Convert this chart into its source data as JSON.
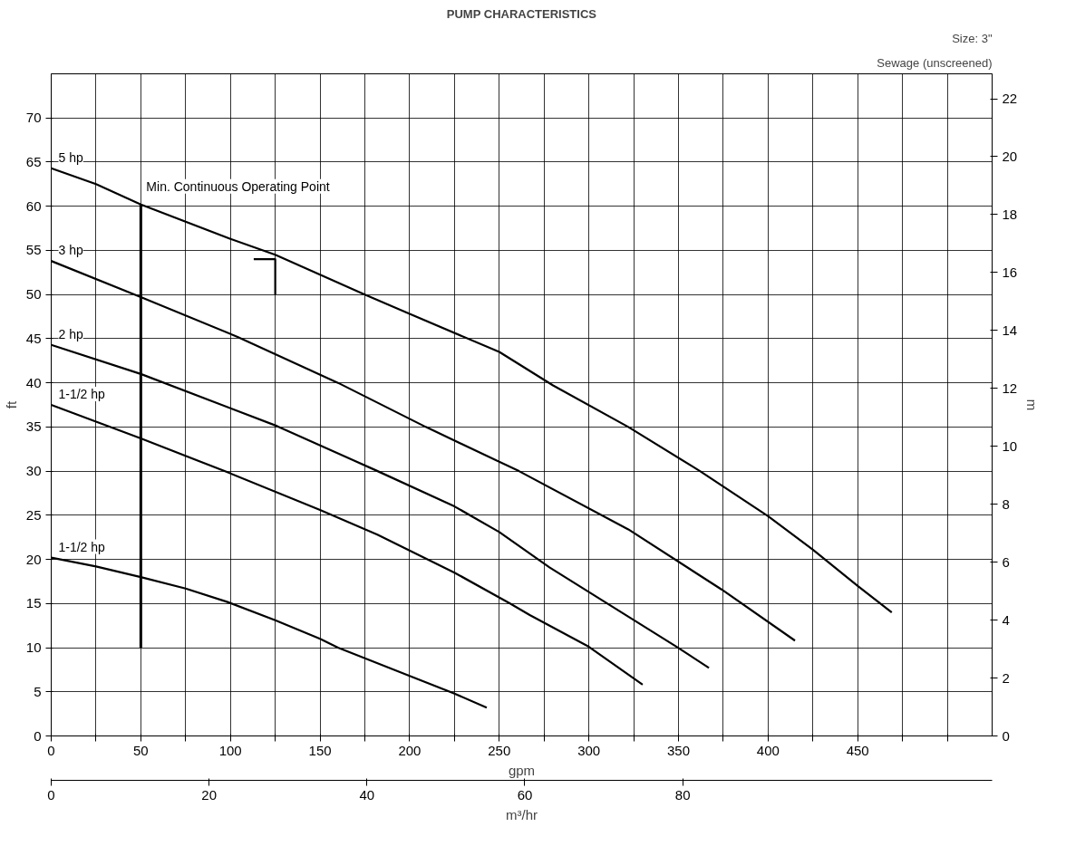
{
  "chart_data": {
    "type": "line",
    "title": "PUMP CHARACTERISTICS",
    "xlabel": "gpm",
    "x2label": "m³/hr",
    "ylabel": "ft",
    "y2label": "m",
    "annotations": [
      "Size: 3\"",
      "Sewage (unscreened)"
    ],
    "xlim": [
      0,
      525
    ],
    "xticks": [
      0,
      {
        "value": 25,
        "label": null
      },
      50,
      {
        "value": 75,
        "label": null
      },
      100,
      {
        "value": 125,
        "label": null
      },
      150,
      {
        "value": 175,
        "label": null
      },
      200,
      {
        "value": 225,
        "label": null
      },
      250,
      {
        "value": 275,
        "label": null
      },
      300,
      {
        "value": 325,
        "label": null
      },
      350,
      {
        "value": 375,
        "label": null
      },
      400,
      {
        "value": 425,
        "label": null
      },
      450,
      {
        "value": 475,
        "label": null
      },
      {
        "value": 500,
        "label": null
      }
    ],
    "x2lim": [
      0,
      119.2
    ],
    "x2ticks": [
      0,
      20,
      40,
      60,
      80
    ],
    "ylim": [
      0,
      75
    ],
    "yticks": [
      0,
      5,
      10,
      15,
      20,
      25,
      30,
      35,
      40,
      45,
      50,
      55,
      60,
      65,
      70
    ],
    "y2lim": [
      0,
      22.86
    ],
    "y2ticks": [
      0,
      2,
      4,
      6,
      8,
      10,
      12,
      14,
      16,
      18,
      20,
      22
    ],
    "grid": true,
    "marker": "none",
    "line_style": "solid",
    "series": [
      {
        "name": "5 hp",
        "color": "#000000",
        "x": [
          0,
          25,
          50,
          100,
          125,
          175,
          200,
          250,
          280,
          322,
          362,
          400,
          425,
          450,
          469
        ],
        "values": [
          64.3,
          62.5,
          60.2,
          56.3,
          54.5,
          50,
          47.8,
          43.5,
          39.7,
          35,
          30,
          24.9,
          21.1,
          17,
          14
        ]
      },
      {
        "name": "3 hp",
        "color": "#000000",
        "x": [
          0,
          50,
          104,
          160,
          209,
          261,
          322,
          374,
          415
        ],
        "values": [
          53.8,
          49.7,
          45.2,
          40,
          35,
          30,
          23.4,
          16.6,
          10.8
        ]
      },
      {
        "name": "2 hp",
        "color": "#000000",
        "x": [
          0,
          50,
          126,
          181,
          225,
          250,
          278,
          315,
          349,
          367
        ],
        "values": [
          44.3,
          41,
          35.1,
          30.1,
          26,
          23.1,
          19.1,
          14.4,
          10.1,
          7.7
        ]
      },
      {
        "name": "1-1/2 hp",
        "color": "#000000",
        "x": [
          0,
          50,
          98,
          150,
          182,
          225,
          256,
          267,
          300,
          330
        ],
        "values": [
          37.5,
          33.7,
          29.9,
          25.6,
          22.8,
          18.5,
          15,
          13.7,
          10.1,
          5.8
        ]
      },
      {
        "name": "1-1/2 hp",
        "color": "#000000",
        "x": [
          0,
          25,
          50,
          75,
          98,
          125,
          150,
          160,
          200,
          225,
          243
        ],
        "values": [
          20.2,
          19.2,
          18,
          16.7,
          15.2,
          13.1,
          11,
          10,
          6.8,
          4.8,
          3.2
        ]
      },
      {
        "name": "Min. Continuous Operating Point",
        "color": "#000000",
        "x": [
          50,
          50
        ],
        "values": [
          10,
          60.2
        ]
      },
      {
        "color": "#000000",
        "x": [
          113,
          125,
          125
        ],
        "values": [
          54,
          54,
          50
        ]
      }
    ]
  }
}
